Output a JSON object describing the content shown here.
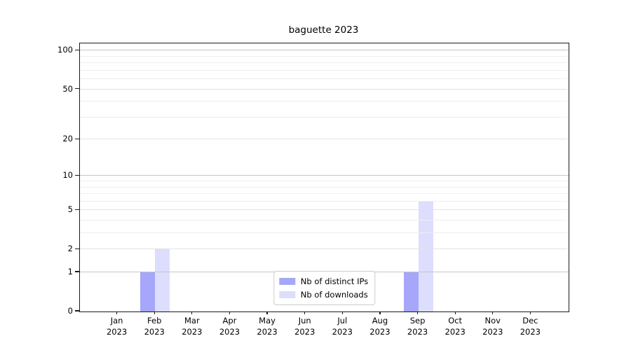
{
  "chart_data": {
    "type": "bar",
    "title": "baguette 2023",
    "x_labels": [
      {
        "month": "Jan",
        "year": "2023"
      },
      {
        "month": "Feb",
        "year": "2023"
      },
      {
        "month": "Mar",
        "year": "2023"
      },
      {
        "month": "Apr",
        "year": "2023"
      },
      {
        "month": "May",
        "year": "2023"
      },
      {
        "month": "Jun",
        "year": "2023"
      },
      {
        "month": "Jul",
        "year": "2023"
      },
      {
        "month": "Aug",
        "year": "2023"
      },
      {
        "month": "Sep",
        "year": "2023"
      },
      {
        "month": "Oct",
        "year": "2023"
      },
      {
        "month": "Nov",
        "year": "2023"
      },
      {
        "month": "Dec",
        "year": "2023"
      }
    ],
    "series": [
      {
        "name": "Nb of distinct IPs",
        "color": "rgba(85,85,245,0.52)",
        "values": [
          0,
          1,
          0,
          0,
          0,
          0,
          0,
          0,
          1,
          0,
          0,
          0
        ]
      },
      {
        "name": "Nb of downloads",
        "color": "rgba(85,85,245,0.20)",
        "values": [
          0,
          2,
          0,
          0,
          0,
          0,
          0,
          0,
          6,
          0,
          0,
          0
        ]
      }
    ],
    "yscale": "log1p",
    "yticks": [
      0,
      1,
      2,
      5,
      10,
      20,
      50,
      100
    ],
    "decade_gridlines": [
      1,
      10,
      100
    ],
    "minor_gridlines": [
      3,
      4,
      6,
      7,
      8,
      9,
      30,
      40,
      60,
      70,
      80,
      90
    ],
    "ylim_top": 114,
    "grid": true,
    "legend_position": "lower center"
  }
}
